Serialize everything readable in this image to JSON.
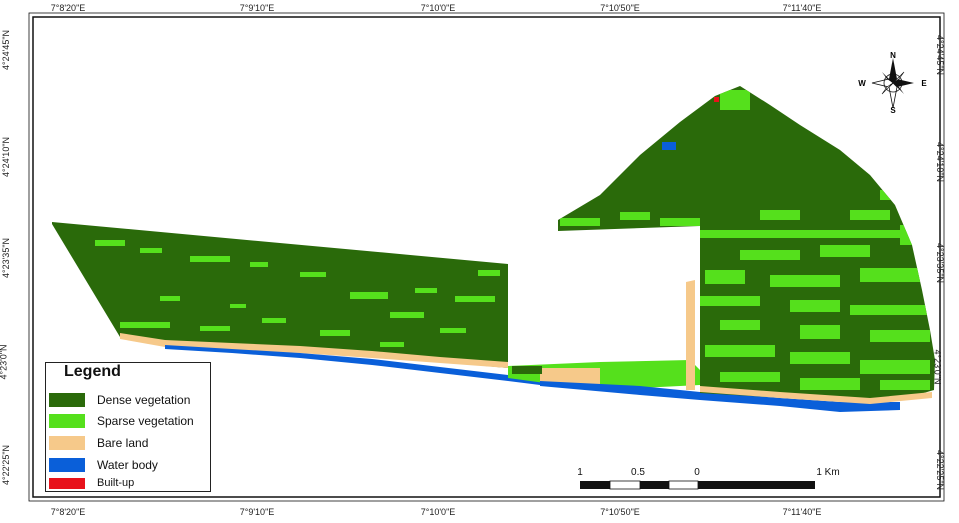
{
  "ticks_top": [
    "7°8'20\"E",
    "7°9'10\"E",
    "7°10'0\"E",
    "7°10'50\"E",
    "7°11'40\"E"
  ],
  "ticks_bottom": [
    "7°8'20\"E",
    "7°9'10\"E",
    "7°10'0\"E",
    "7°10'50\"E",
    "7°11'40\"E"
  ],
  "ticks_left": [
    "4°24'45\"N",
    "4°24'10\"N",
    "4°23'35\"N",
    "4°23'0\"N",
    "4°22'25\"N"
  ],
  "ticks_right": [
    "4°24'45\"N",
    "4°24'10\"N",
    "4°23'35\"N",
    "4°23'0\"N",
    "4°22'25\"N"
  ],
  "legend": {
    "title": "Legend",
    "items": [
      {
        "label": "Dense vegetation",
        "color": "#2a6a0a"
      },
      {
        "label": "Sparse vegetation",
        "color": "#55e01c"
      },
      {
        "label": "Bare land",
        "color": "#f6c98a"
      },
      {
        "label": "Water body",
        "color": "#0a5fd9"
      },
      {
        "label": "Built-up",
        "color": "#e8121b"
      }
    ]
  },
  "compass": {
    "n": "N",
    "s": "S",
    "e": "E",
    "w": "W"
  },
  "scale_bar": {
    "labels": [
      "1",
      "0.5",
      "0",
      "1 Km"
    ]
  }
}
